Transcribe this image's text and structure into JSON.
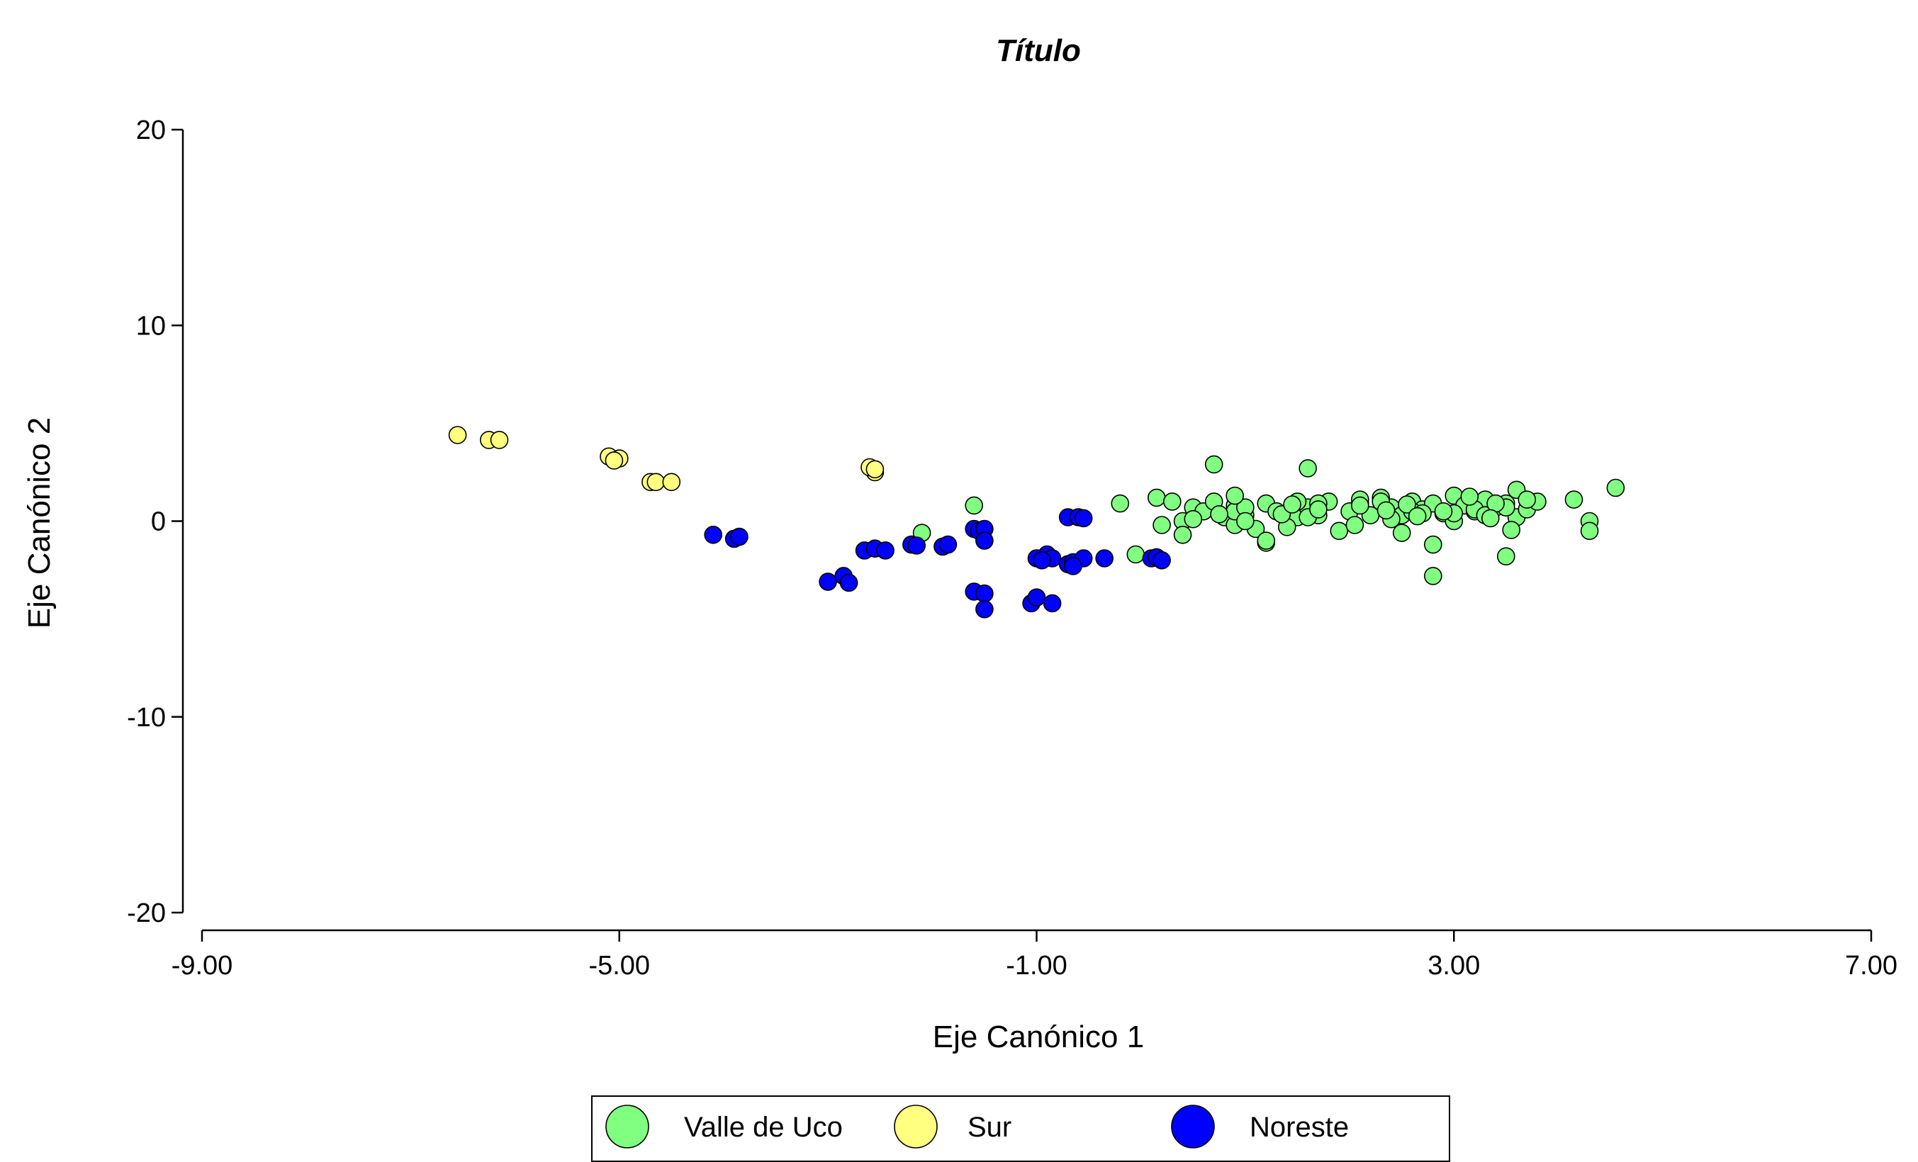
{
  "chart_data": {
    "type": "scatter",
    "title": "Título",
    "xlabel": "Eje Canónico 1",
    "ylabel": "Eje Canónico 2",
    "xlim": [
      -9,
      7
    ],
    "ylim": [
      -20,
      20
    ],
    "xticks": [
      "-9.00",
      "-5.00",
      "-1.00",
      "3.00",
      "7.00"
    ],
    "yticks": [
      "20",
      "10",
      "0",
      "-10",
      "-20"
    ],
    "xtick_values": [
      -9,
      -5,
      -1,
      3,
      7
    ],
    "ytick_values": [
      20,
      10,
      0,
      -10,
      -20
    ],
    "grid": false,
    "legend_position": "bottom",
    "series": [
      {
        "name": "Valle de Uco",
        "color": "#80ff80",
        "points": [
          [
            0.15,
            1.2
          ],
          [
            0.3,
            1.0
          ],
          [
            0.5,
            0.7
          ],
          [
            0.8,
            0.2
          ],
          [
            0.6,
            0.5
          ],
          [
            1.0,
            0.3
          ],
          [
            1.2,
            0.9
          ],
          [
            1.3,
            0.5
          ],
          [
            1.5,
            0.2
          ],
          [
            1.4,
            -0.3
          ],
          [
            1.1,
            -0.4
          ],
          [
            0.9,
            0.8
          ],
          [
            0.7,
            1.0
          ],
          [
            0.4,
            0.0
          ],
          [
            0.2,
            -0.2
          ],
          [
            1.6,
            0.7
          ],
          [
            1.8,
            1.0
          ],
          [
            2.0,
            0.5
          ],
          [
            2.1,
            0.9
          ],
          [
            2.2,
            0.3
          ],
          [
            2.3,
            1.2
          ],
          [
            2.4,
            0.7
          ],
          [
            2.5,
            0.3
          ],
          [
            2.6,
            1.0
          ],
          [
            2.7,
            0.6
          ],
          [
            2.8,
            0.9
          ],
          [
            2.9,
            0.4
          ],
          [
            3.0,
            1.3
          ],
          [
            3.1,
            0.8
          ],
          [
            3.2,
            0.5
          ],
          [
            3.3,
            1.1
          ],
          [
            3.4,
            0.7
          ],
          [
            3.5,
            0.9
          ],
          [
            3.6,
            0.2
          ],
          [
            3.7,
            0.6
          ],
          [
            3.8,
            1.0
          ],
          [
            1.9,
            -0.5
          ],
          [
            2.5,
            -0.6
          ],
          [
            2.8,
            -1.2
          ],
          [
            3.5,
            -1.8
          ],
          [
            2.8,
            -2.8
          ],
          [
            1.2,
            -1.1
          ],
          [
            0.4,
            -0.7
          ],
          [
            -0.2,
            0.9
          ],
          [
            1.2,
            -1.0
          ],
          [
            0.5,
            0.1
          ],
          [
            0.9,
            -0.2
          ],
          [
            1.7,
            0.3
          ],
          [
            2.4,
            0.1
          ],
          [
            3.0,
            0.0
          ],
          [
            3.2,
            0.6
          ],
          [
            2.1,
            1.1
          ],
          [
            1.5,
            1.0
          ],
          [
            0.9,
            0.5
          ],
          [
            1.6,
            2.7
          ],
          [
            1.6,
            0.2
          ],
          [
            1.7,
            0.9
          ],
          [
            2.1,
            0.8
          ],
          [
            2.3,
            1.0
          ],
          [
            2.6,
            0.5
          ],
          [
            3.0,
            0.4
          ],
          [
            3.3,
            0.3
          ],
          [
            3.5,
            0.7
          ],
          [
            3.6,
            1.6
          ],
          [
            3.7,
            1.1
          ],
          [
            4.15,
            1.1
          ],
          [
            4.55,
            1.7
          ],
          [
            4.3,
            0.0
          ],
          [
            4.3,
            -0.5
          ],
          [
            3.4,
            0.9
          ],
          [
            0.7,
            2.9
          ],
          [
            1.7,
            0.6
          ],
          [
            2.7,
            0.4
          ],
          [
            -0.05,
            -1.7
          ],
          [
            -2.1,
            -0.6
          ],
          [
            -1.6,
            0.8
          ],
          [
            1.0,
            0.7
          ],
          [
            0.9,
            1.3
          ],
          [
            2.9,
            0.5
          ],
          [
            2.05,
            -0.2
          ],
          [
            2.35,
            0.55
          ],
          [
            2.55,
            0.85
          ],
          [
            3.15,
            1.25
          ],
          [
            3.35,
            0.15
          ],
          [
            1.35,
            0.35
          ],
          [
            0.75,
            0.35
          ],
          [
            1.45,
            0.85
          ],
          [
            2.65,
            0.25
          ],
          [
            3.55,
            -0.45
          ],
          [
            1.0,
            0.0
          ]
        ]
      },
      {
        "name": "Sur",
        "color": "#ffff80",
        "points": [
          [
            -6.55,
            4.4
          ],
          [
            -6.25,
            4.15
          ],
          [
            -6.15,
            4.15
          ],
          [
            -5.1,
            3.3
          ],
          [
            -5.0,
            3.2
          ],
          [
            -5.05,
            3.1
          ],
          [
            -4.7,
            2.0
          ],
          [
            -4.65,
            2.0
          ],
          [
            -4.5,
            2.0
          ],
          [
            -2.55,
            2.5
          ],
          [
            -2.6,
            2.75
          ],
          [
            -2.55,
            2.65
          ]
        ]
      },
      {
        "name": "Noreste",
        "color": "#0000ff",
        "points": [
          [
            -4.1,
            -0.7
          ],
          [
            -3.9,
            -0.9
          ],
          [
            -3.85,
            -0.8
          ],
          [
            -3.0,
            -3.1
          ],
          [
            -2.85,
            -2.8
          ],
          [
            -2.8,
            -3.15
          ],
          [
            -2.65,
            -1.5
          ],
          [
            -2.55,
            -1.4
          ],
          [
            -2.45,
            -1.5
          ],
          [
            -2.2,
            -1.2
          ],
          [
            -2.15,
            -1.25
          ],
          [
            -1.9,
            -1.3
          ],
          [
            -1.85,
            -1.2
          ],
          [
            -1.6,
            -0.4
          ],
          [
            -1.55,
            -0.5
          ],
          [
            -1.5,
            -0.4
          ],
          [
            -1.5,
            -1.0
          ],
          [
            -1.6,
            -3.6
          ],
          [
            -1.5,
            -3.7
          ],
          [
            -1.5,
            -4.5
          ],
          [
            -1.05,
            -4.2
          ],
          [
            -1.0,
            -3.9
          ],
          [
            -0.85,
            -4.2
          ],
          [
            -1.0,
            -1.9
          ],
          [
            -0.9,
            -1.7
          ],
          [
            -0.85,
            -1.9
          ],
          [
            -0.7,
            -2.2
          ],
          [
            -0.65,
            -2.1
          ],
          [
            -0.55,
            -1.9
          ],
          [
            -0.35,
            -1.9
          ],
          [
            -0.7,
            0.2
          ],
          [
            -0.6,
            0.2
          ],
          [
            -0.55,
            0.15
          ],
          [
            0.1,
            -1.9
          ],
          [
            0.15,
            -1.85
          ],
          [
            0.2,
            -2.0
          ],
          [
            -0.65,
            -2.3
          ],
          [
            -0.95,
            -2.0
          ]
        ]
      }
    ]
  }
}
